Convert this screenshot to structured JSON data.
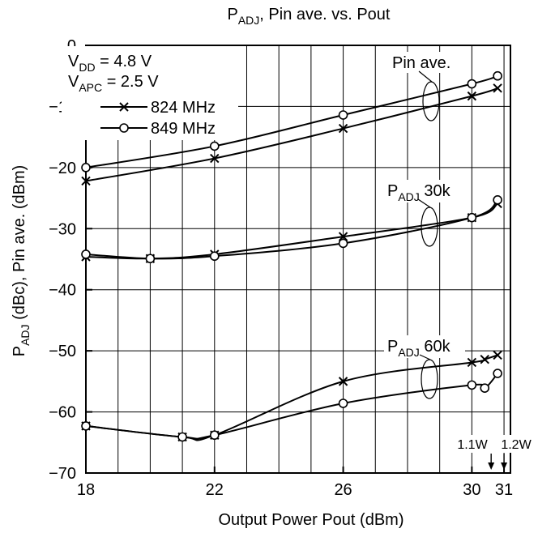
{
  "chart_data": {
    "type": "line",
    "title": {
      "main": "P",
      "sub": "ADJ",
      "rest": ", Pin ave. vs. Pout"
    },
    "xlabel": "Output Power  Pout  (dBm)",
    "ylabel": {
      "p1": "P",
      "p1_sub": "ADJ",
      "p2": "  (dBc),  Pin ave.  (dBm)"
    },
    "xlim": [
      18,
      31.2
    ],
    "ylim": [
      -70,
      0
    ],
    "x_ticks": [
      {
        "value": 18,
        "label": "18"
      },
      {
        "value": 22,
        "label": "22"
      },
      {
        "value": 26,
        "label": "26"
      },
      {
        "value": 30,
        "label": "30"
      },
      {
        "value": 31,
        "label": "31"
      }
    ],
    "y_ticks": [
      {
        "value": 0,
        "label": "0"
      },
      {
        "value": -10,
        "label": "−10"
      },
      {
        "value": -20,
        "label": "−20"
      },
      {
        "value": -30,
        "label": "−30"
      },
      {
        "value": -40,
        "label": "−40"
      },
      {
        "value": -50,
        "label": "−50"
      },
      {
        "value": -60,
        "label": "−60"
      },
      {
        "value": -70,
        "label": "−70"
      }
    ],
    "grid": true,
    "grid_x_step": 1,
    "legend": {
      "position": "top-left",
      "conditions": [
        {
          "main": "V",
          "sub": "DD",
          "rest": " = 4.8 V"
        },
        {
          "main": "V",
          "sub": "APC",
          "rest": " = 2.5 V"
        }
      ],
      "entries": [
        {
          "label": "824 MHz",
          "marker": "x"
        },
        {
          "label": "849 MHz",
          "marker": "o"
        }
      ]
    },
    "group_labels": [
      {
        "main": "Pin ave.",
        "sub": "",
        "rest": ""
      },
      {
        "main": "P",
        "sub": "ADJ",
        "rest": " 30k"
      },
      {
        "main": "P",
        "sub": "ADJ",
        "rest": " 60k"
      }
    ],
    "annotations": [
      "1.1W",
      "1.2W"
    ],
    "annotation_x": [
      30.6,
      31
    ],
    "series": [
      {
        "name": "824 MHz",
        "marker": "x",
        "group": "Pin ave.",
        "points": [
          [
            18,
            -22.2
          ],
          [
            22,
            -18.5
          ],
          [
            26,
            -13.6
          ],
          [
            30,
            -8.3
          ],
          [
            30.8,
            -7.0
          ]
        ]
      },
      {
        "name": "849 MHz",
        "marker": "o",
        "group": "Pin ave.",
        "points": [
          [
            18,
            -20.0
          ],
          [
            22,
            -16.5
          ],
          [
            26,
            -11.4
          ],
          [
            30,
            -6.3
          ],
          [
            30.8,
            -5.0
          ]
        ]
      },
      {
        "name": "824 MHz",
        "marker": "x",
        "group": "PADJ 30k",
        "points": [
          [
            18,
            -34.6
          ],
          [
            20,
            -34.9
          ],
          [
            22,
            -34.2
          ],
          [
            26,
            -31.3
          ],
          [
            30,
            -28.2
          ],
          [
            30.8,
            -25.9
          ]
        ]
      },
      {
        "name": "849 MHz",
        "marker": "o",
        "group": "PADJ 30k",
        "points": [
          [
            18,
            -34.2
          ],
          [
            20,
            -34.9
          ],
          [
            22,
            -34.5
          ],
          [
            26,
            -32.4
          ],
          [
            30,
            -28.2
          ],
          [
            30.8,
            -25.3
          ]
        ]
      },
      {
        "name": "824 MHz",
        "marker": "x",
        "group": "PADJ 60k",
        "points": [
          [
            18,
            -62.3
          ],
          [
            21,
            -64.1
          ],
          [
            22,
            -63.8
          ],
          [
            26,
            -55.0
          ],
          [
            30,
            -51.9
          ],
          [
            30.4,
            -51.4
          ],
          [
            30.8,
            -50.7
          ]
        ]
      },
      {
        "name": "849 MHz",
        "marker": "o",
        "group": "PADJ 60k",
        "points": [
          [
            18,
            -62.3
          ],
          [
            21,
            -64.1
          ],
          [
            22,
            -63.8
          ],
          [
            26,
            -58.6
          ],
          [
            30,
            -55.6
          ],
          [
            30.4,
            -56.1
          ],
          [
            30.8,
            -53.7
          ]
        ]
      }
    ]
  }
}
